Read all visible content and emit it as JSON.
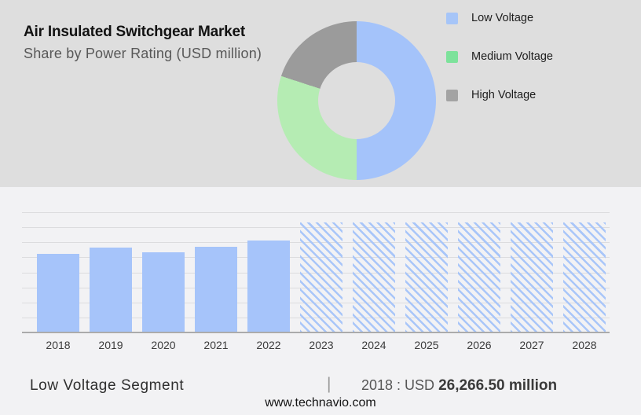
{
  "header": {
    "title": "Air Insulated Switchgear Market",
    "subtitle": "Share by Power Rating (USD million)"
  },
  "legend": {
    "items": [
      {
        "label": "Low Voltage",
        "color": "#a6c5f8"
      },
      {
        "label": "Medium Voltage",
        "color": "#7de29b"
      },
      {
        "label": "High Voltage",
        "color": "#a3a3a3"
      }
    ]
  },
  "caption": {
    "segment_label": "Low Voltage Segment",
    "separator": "|",
    "value_prefix": "2018 : USD ",
    "value_bold": "26,266.50 million"
  },
  "footer": {
    "url": "www.technavio.com"
  },
  "colors": {
    "header_bg": "#dedede",
    "body_bg": "#f2f2f4",
    "bar_blue": "#a6c4fa",
    "gridline": "#dcdcde",
    "axis": "#ababab",
    "hatch_line": "#a9c6f9"
  },
  "chart_data": [
    {
      "type": "pie",
      "subtype": "donut",
      "title": "Share by Power Rating (USD million)",
      "labels": [
        "Low Voltage",
        "Medium Voltage",
        "High Voltage"
      ],
      "values_percent": [
        50,
        30,
        20
      ],
      "colors": [
        "#a4c3fa",
        "#b5ecb3",
        "#9b9b9b"
      ],
      "legend_position": "right",
      "note": "slice shares estimated from arc angles; no numeric labels shown"
    },
    {
      "type": "bar",
      "title": "Low Voltage Segment (USD million)",
      "categories": [
        "2018",
        "2019",
        "2020",
        "2021",
        "2022",
        "2023",
        "2024",
        "2025",
        "2026",
        "2027",
        "2028"
      ],
      "values": [
        26266.5,
        28200,
        26700,
        28500,
        30600,
        36600,
        36600,
        36600,
        36600,
        36600,
        36600
      ],
      "labeled_value": {
        "year": "2018",
        "value": 26266.5,
        "text": "2018 : USD 26,266.50 million"
      },
      "forecast_from": "2023",
      "forecast_style": "diagonal-hatch",
      "xlabel": "",
      "ylabel": "",
      "ylim": [
        0,
        40000
      ],
      "grid_step": 5000,
      "grid": true,
      "note": "only 2018 value labeled on image; other values estimated from gridlines (5000 per division)"
    }
  ]
}
